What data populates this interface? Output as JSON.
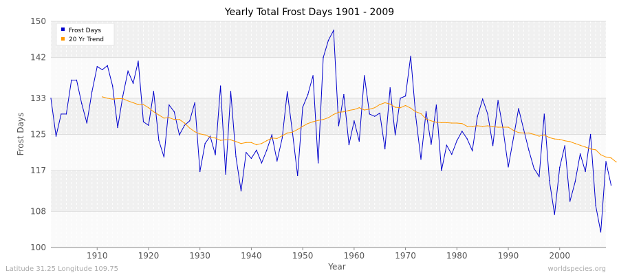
{
  "chart_data": {
    "type": "line",
    "title": "Yearly Total Frost Days 1901 - 2009",
    "xlabel": "Year",
    "ylabel": "Frost Days",
    "xlim": [
      1901,
      2009
    ],
    "ylim": [
      100,
      150
    ],
    "y_ticks": [
      100,
      108,
      117,
      125,
      133,
      142,
      150
    ],
    "x_ticks": [
      1910,
      1920,
      1930,
      1940,
      1950,
      1960,
      1970,
      1980,
      1990,
      2000
    ],
    "grid": true,
    "legend_position": "top-left",
    "colors": {
      "frost": "#0000cc",
      "trend": "#ff9900",
      "band": "#f0f0f0",
      "grid": "#dddddd"
    },
    "series": [
      {
        "name": "Frost Days",
        "color": "#0000cc",
        "start_year": 1901,
        "values": [
          133,
          124.6,
          129.5,
          129.5,
          137,
          137,
          131.8,
          127.5,
          134.5,
          140,
          139.3,
          140.2,
          135.7,
          126.5,
          133.5,
          139,
          136.3,
          141.2,
          127.8,
          127,
          134.5,
          123.7,
          120,
          131.5,
          130,
          124.9,
          127,
          128,
          132,
          116.8,
          123,
          124.6,
          120.5,
          135.7,
          116.2,
          134.5,
          120.1,
          112.5,
          121,
          119.7,
          121.5,
          118.7,
          121.5,
          124.9,
          119.1,
          124.2,
          134.4,
          125.5,
          115.9,
          131,
          133.8,
          138,
          118.7,
          142,
          145.8,
          148,
          126.9,
          133.8,
          122.7,
          128,
          123.5,
          138,
          129.5,
          129,
          129.7,
          121.8,
          135.3,
          124.9,
          133,
          133.5,
          142.3,
          129,
          119.5,
          130,
          122.8,
          131.5,
          117,
          122.6,
          120.6,
          123.6,
          125.7,
          124,
          121.4,
          129,
          132.8,
          129.5,
          122.5,
          132.5,
          126,
          117.8,
          124.2,
          130.7,
          126.1,
          121.5,
          117.5,
          115.7,
          129.5,
          114.8,
          107.3,
          117.7,
          122.5,
          110.2,
          114.5,
          120.7,
          116.8,
          125,
          109.3,
          103.4,
          119,
          113.8
        ]
      },
      {
        "name": "20 Yr Trend",
        "color": "#ff9900",
        "start_year": 1911,
        "values": [
          133.3,
          133,
          132.8,
          132.9,
          132.9,
          132.4,
          132,
          131.6,
          131.6,
          130.9,
          130,
          129.3,
          128.6,
          128.7,
          128.3,
          128.3,
          127.5,
          126.4,
          125.6,
          125.1,
          124.9,
          124.4,
          124.2,
          123.7,
          123.8,
          123.8,
          123.4,
          123,
          123.2,
          123.2,
          122.7,
          123,
          123.6,
          124.2,
          124.1,
          124.7,
          125.3,
          125.5,
          126.1,
          126.8,
          127.4,
          127.8,
          128.1,
          128.3,
          128.7,
          129.4,
          129.9,
          130,
          130.3,
          130.5,
          130.9,
          130.4,
          130.6,
          130.9,
          131.6,
          132,
          131.7,
          131,
          130.9,
          131.4,
          130.8,
          130,
          129.6,
          128.4,
          128,
          127.7,
          127.6,
          127.6,
          127.5,
          127.5,
          127.4,
          126.8,
          126.8,
          126.9,
          126.8,
          126.9,
          126.7,
          126.6,
          126.6,
          126.6,
          125.9,
          125.4,
          125.3,
          125.3,
          125,
          124.6,
          124.9,
          124.3,
          124,
          123.9,
          123.6,
          123.4,
          123,
          122.6,
          122.2,
          121.8,
          121.6,
          120.5,
          120,
          119.8,
          118.9
        ]
      }
    ]
  },
  "footer": {
    "left": "Latitude 31.25 Longitude 109.75",
    "right": "worldspecies.org"
  }
}
